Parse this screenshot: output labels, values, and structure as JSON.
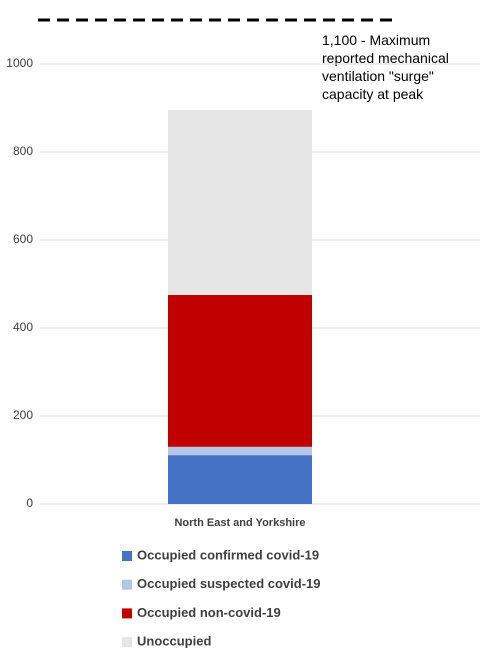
{
  "chart_data": {
    "type": "stacked_bar",
    "categories": [
      "North East and Yorkshire"
    ],
    "series": [
      {
        "name": "Occupied confirmed covid-19",
        "color": "#4472c4",
        "values": [
          111
        ]
      },
      {
        "name": "Occupied suspected covid-19",
        "color": "#b4c7e7",
        "values": [
          19
        ]
      },
      {
        "name": "Occupied non-covid-19",
        "color": "#c00000",
        "values": [
          345
        ]
      },
      {
        "name": "Unoccupied",
        "color": "#e7e6e6",
        "values": [
          420
        ]
      }
    ],
    "reference_line": {
      "value": 1100,
      "label": "1,100 - Maximum reported mechanical ventilation \"surge\" capacity at peak"
    },
    "ylim": [
      0,
      1100
    ],
    "yticks": [
      0,
      200,
      400,
      600,
      800,
      1000
    ],
    "grid": true,
    "legend": "bottom"
  }
}
